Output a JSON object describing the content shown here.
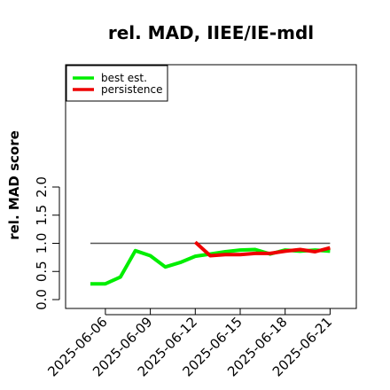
{
  "chart_data": {
    "type": "line",
    "title": "rel. MAD, IIEE/IE-mdl",
    "xlabel": "",
    "ylabel": "rel. MAD score",
    "ylim": [
      0,
      2
    ],
    "yticks": [
      "0.0",
      "0.5",
      "1.0",
      "1.5",
      "2.0"
    ],
    "xticks": [
      "2025-06-06",
      "2025-06-09",
      "2025-06-12",
      "2025-06-15",
      "2025-06-18",
      "2025-06-21"
    ],
    "legend_position": "top-left",
    "reference_line": {
      "y": 1.0,
      "from": "2025-06-05",
      "to": "2025-06-21",
      "color": "#555555"
    },
    "series": [
      {
        "name": "best est.",
        "color": "#00ee00",
        "x": [
          "2025-06-05",
          "2025-06-06",
          "2025-06-07",
          "2025-06-08",
          "2025-06-09",
          "2025-06-10",
          "2025-06-11",
          "2025-06-12",
          "2025-06-13",
          "2025-06-14",
          "2025-06-15",
          "2025-06-16",
          "2025-06-17",
          "2025-06-18",
          "2025-06-19",
          "2025-06-20",
          "2025-06-21"
        ],
        "values": [
          0.28,
          0.28,
          0.4,
          0.87,
          0.78,
          0.58,
          0.66,
          0.77,
          0.81,
          0.85,
          0.88,
          0.89,
          0.81,
          0.88,
          0.86,
          0.88,
          0.86
        ]
      },
      {
        "name": "persistence",
        "color": "#ee0000",
        "x": [
          "2025-06-12",
          "2025-06-13",
          "2025-06-14",
          "2025-06-15",
          "2025-06-16",
          "2025-06-17",
          "2025-06-18",
          "2025-06-19",
          "2025-06-20",
          "2025-06-21"
        ],
        "values": [
          1.02,
          0.78,
          0.8,
          0.8,
          0.82,
          0.82,
          0.86,
          0.89,
          0.85,
          0.92
        ]
      }
    ]
  }
}
